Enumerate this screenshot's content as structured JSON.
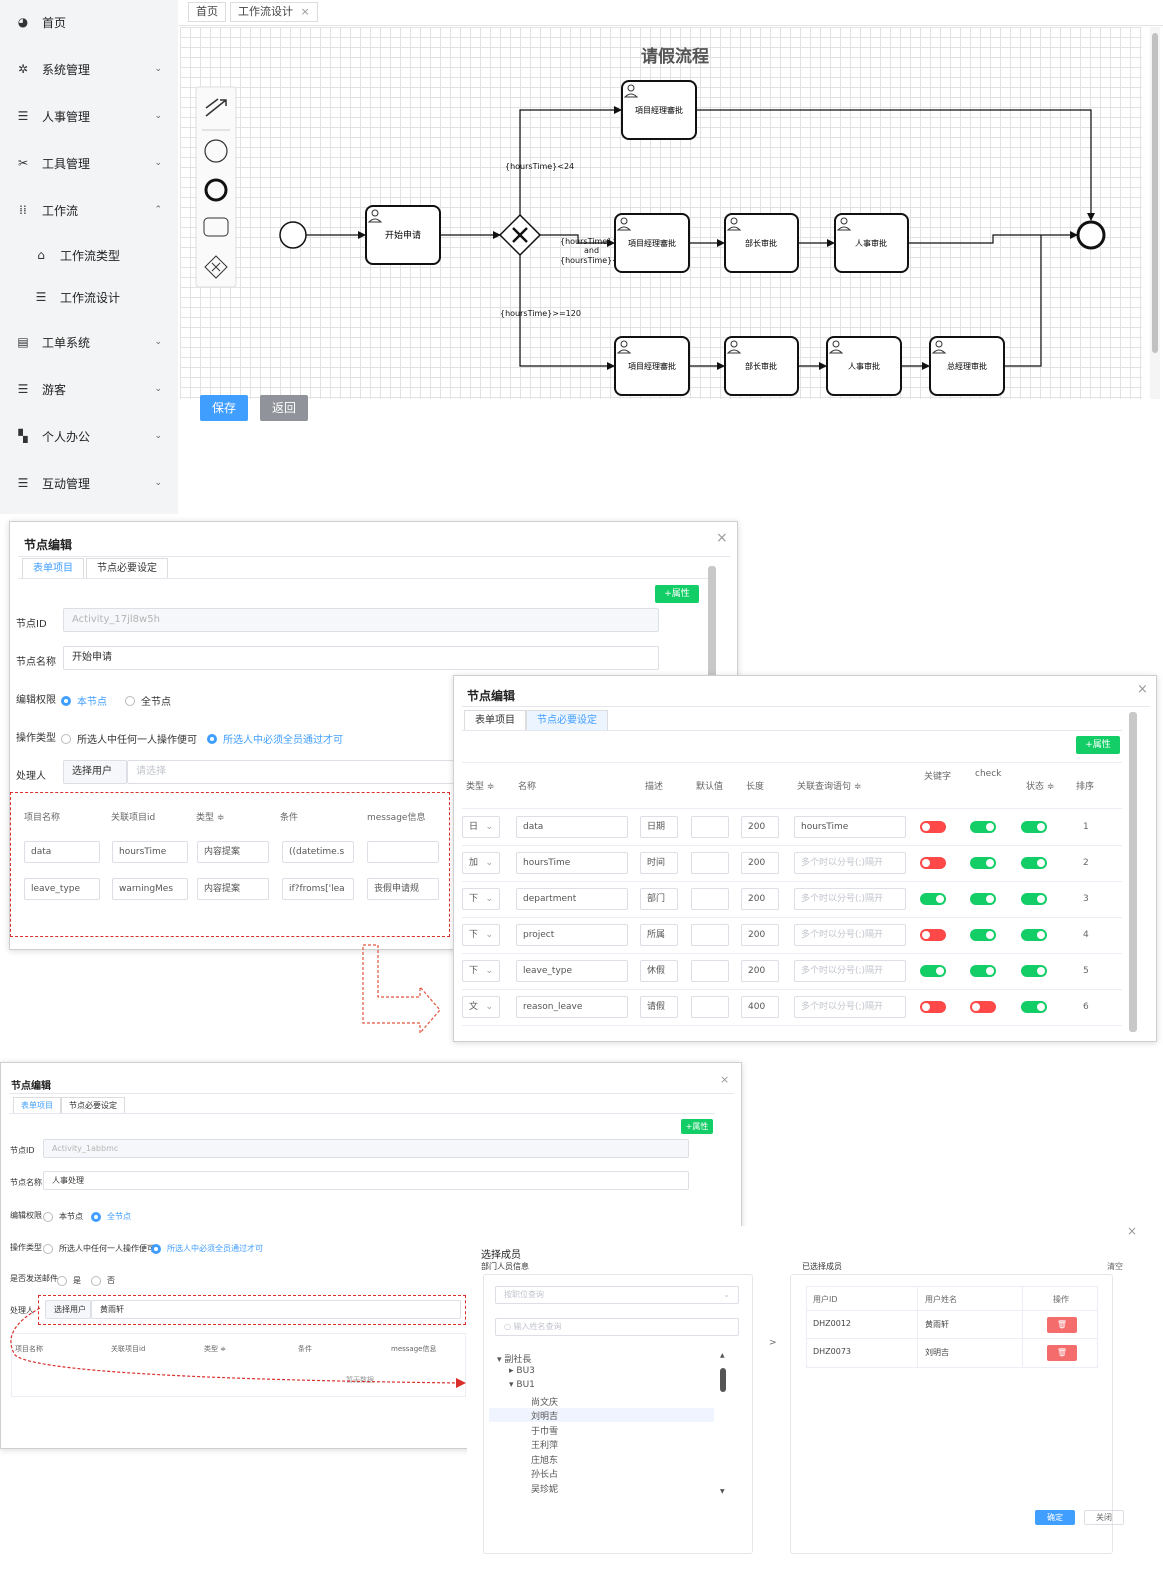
{
  "sidebar": {
    "items": [
      {
        "label": "首页",
        "icon": "dashboard-icon"
      },
      {
        "label": "系统管理",
        "icon": "gear-icon"
      },
      {
        "label": "人事管理",
        "icon": "list-icon"
      },
      {
        "label": "工具管理",
        "icon": "tools-icon"
      },
      {
        "label": "工作流",
        "icon": "flow-icon"
      },
      {
        "label": "工作流类型",
        "icon": "type-icon"
      },
      {
        "label": "工作流设计",
        "icon": "list-icon"
      },
      {
        "label": "工单系统",
        "icon": "clipboard-icon"
      },
      {
        "label": "游客",
        "icon": "list-icon"
      },
      {
        "label": "个人办公",
        "icon": "grid-icon"
      },
      {
        "label": "互动管理",
        "icon": "list-icon"
      }
    ]
  },
  "tabs": {
    "home": "首页",
    "current": "工作流设计",
    "close": "×"
  },
  "diagram": {
    "title": "请假流程",
    "tasks": {
      "start_apply": "开始申请",
      "pm_top": "項目經理審批",
      "pm_mid": "項目經理審批",
      "dept_mid": "部长审批",
      "hr_mid": "人事审批",
      "pm_bot": "項目經理審批",
      "dept_bot": "部长审批",
      "hr_bot": "人事审批",
      "gm_bot": "总經理审批"
    },
    "conditions": {
      "lt24": "{hoursTime}<24",
      "mid_1": "{hoursTime}>=24",
      "mid_2": "and",
      "mid_3": "{hoursTime}<120",
      "ge120": "{hoursTime}>=120"
    }
  },
  "buttons": {
    "save": "保存",
    "back": "返回"
  },
  "dialog1": {
    "title": "节点编辑",
    "tab_form": "表单项目",
    "tab_settings": "节点必要设定",
    "add_attr": "+属性",
    "node_id_label": "节点ID",
    "node_id_value": "Activity_17jl8w5h",
    "node_name_label": "节点名称",
    "node_name_value": "开始申请",
    "edit_perm_label": "编辑权限",
    "perm_this": "本节点",
    "perm_all": "全节点",
    "op_type_label": "操作类型",
    "op_any": "所选人中任何一人操作便可",
    "op_all": "所选人中必须全员通过才可",
    "handler_label": "处理人",
    "select_user": "选择用户",
    "select_placeholder": "请选择",
    "columns": [
      "项目名称",
      "关联项目id",
      "类型 ≑",
      "条件",
      "message信息"
    ],
    "rows": [
      [
        "data",
        "hoursTime",
        "内容提案",
        "((datetime.s",
        ""
      ],
      [
        "leave_type",
        "warningMes",
        "内容提案",
        "if?froms['lea",
        "丧假申请规"
      ]
    ]
  },
  "dialog2": {
    "title": "节点编辑",
    "tab_form": "表单项目",
    "tab_settings": "节点必要设定",
    "add_attr": "+属性",
    "columns": [
      "类型 ≑",
      "名称",
      "描述",
      "默认值",
      "长度",
      "关联查询语句 ≑",
      "关键字",
      "check",
      "状态 ≑",
      "排序"
    ],
    "placeholder": "多个时以分号(;)隔开",
    "rows": [
      {
        "type": "日",
        "name": "data",
        "desc": "日期",
        "len": "200",
        "query": "hoursTime",
        "key": false,
        "check": true,
        "status": true,
        "order": "1"
      },
      {
        "type": "加",
        "name": "hoursTime",
        "desc": "时间",
        "len": "200",
        "query": "",
        "key": false,
        "check": true,
        "status": true,
        "order": "2"
      },
      {
        "type": "下",
        "name": "department",
        "desc": "部门",
        "len": "200",
        "query": "",
        "key": true,
        "check": true,
        "status": true,
        "order": "3"
      },
      {
        "type": "下",
        "name": "project",
        "desc": "所属",
        "len": "200",
        "query": "",
        "key": false,
        "check": true,
        "status": true,
        "order": "4"
      },
      {
        "type": "下",
        "name": "leave_type",
        "desc": "休假",
        "len": "200",
        "query": "",
        "key": true,
        "check": true,
        "status": true,
        "order": "5"
      },
      {
        "type": "文",
        "name": "reason_leave",
        "desc": "请假",
        "len": "400",
        "query": "",
        "key": false,
        "check": false,
        "status": true,
        "order": "6"
      }
    ]
  },
  "dialog3": {
    "title": "节点编辑",
    "tab_form": "表单项目",
    "tab_settings": "节点必要设定",
    "add_attr": "+属性",
    "node_id_label": "节点ID",
    "node_id_value": "Activity_1abbmc",
    "node_name_label": "节点名称",
    "node_name_value": "人事处理",
    "edit_perm_label": "编辑权限",
    "perm_this": "本节点",
    "perm_all": "全节点",
    "op_type_label": "操作类型",
    "op_any": "所选人中任何一人操作便可",
    "op_all": "所选人中必须全员通过才可",
    "mail_label": "是否发送邮件",
    "mail_yes": "是",
    "mail_no": "否",
    "handler_label": "处理人",
    "select_user": "选择用户",
    "handler_value": "黄雨轩",
    "columns": [
      "项目名称",
      "关联项目id",
      "类型 ≑",
      "条件",
      "message信息"
    ],
    "empty_text": "暂无数据"
  },
  "member_dialog": {
    "title": "选择成员",
    "dept_title": "部门人员信息",
    "selected_title": "已选择成员",
    "clear": "清空",
    "position_placeholder": "按职位查询",
    "name_placeholder": "输入姓名查询",
    "arrow": ">",
    "tree": [
      "副社長",
      "BU3",
      "BU1",
      "尚文庆",
      "刘明吉",
      "于巾雪",
      "王利萍",
      "庄旭东",
      "孙长占",
      "吴珍妮"
    ],
    "columns": [
      "用户ID",
      "用户姓名",
      "操作"
    ],
    "selected": [
      {
        "id": "DHZ0012",
        "name": "黄雨轩"
      },
      {
        "id": "DHZ0073",
        "name": "刘明吉"
      }
    ],
    "delete_icon": "trash-icon",
    "confirm": "确定",
    "close": "关闭"
  }
}
